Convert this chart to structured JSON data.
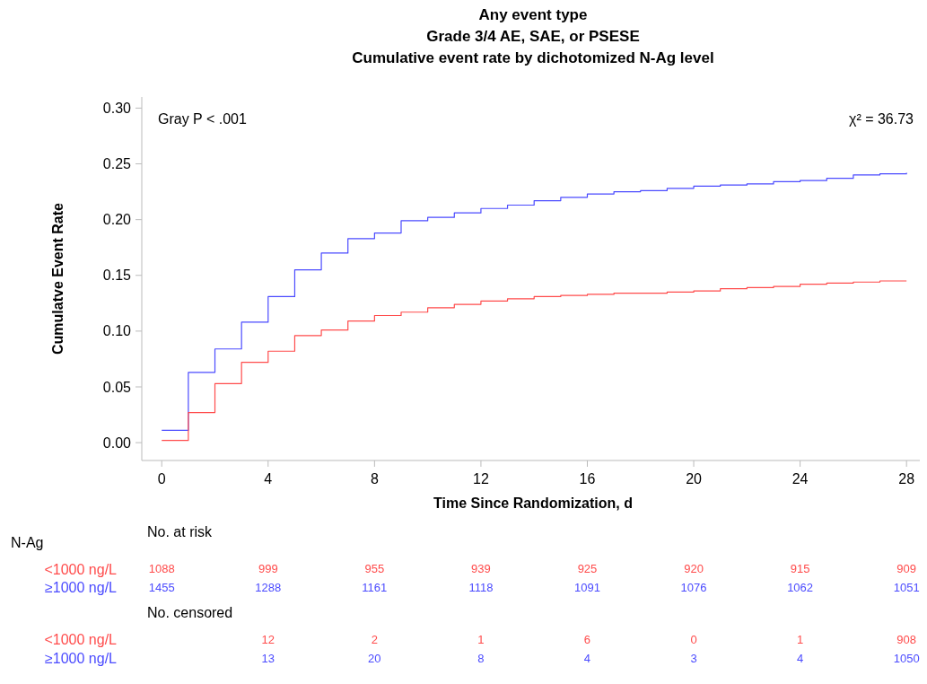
{
  "chart_data": {
    "type": "step",
    "title": "Any event type",
    "subtitle": "Grade 3/4 AE, SAE, or PSESE\nCumulative event rate by dichotomized N-Ag level",
    "xlabel": "Time Since Randomization, d",
    "ylabel": "Cumulatve Event Rate",
    "x": [
      0,
      1,
      2,
      3,
      4,
      5,
      6,
      7,
      8,
      9,
      10,
      11,
      12,
      13,
      14,
      15,
      16,
      17,
      18,
      19,
      20,
      21,
      22,
      23,
      24,
      25,
      26,
      27,
      28
    ],
    "series": [
      {
        "color": "#4b4bff",
        "values": [
          0.011,
          0.063,
          0.084,
          0.108,
          0.131,
          0.155,
          0.17,
          0.183,
          0.188,
          0.199,
          0.202,
          0.206,
          0.21,
          0.213,
          0.217,
          0.22,
          0.223,
          0.225,
          0.226,
          0.228,
          0.23,
          0.231,
          0.232,
          0.234,
          0.235,
          0.237,
          0.24,
          0.241,
          0.242
        ]
      },
      {
        "color": "#ff4b4b",
        "values": [
          0.002,
          0.027,
          0.053,
          0.072,
          0.082,
          0.096,
          0.101,
          0.109,
          0.114,
          0.117,
          0.121,
          0.124,
          0.127,
          0.129,
          0.131,
          0.132,
          0.133,
          0.134,
          0.134,
          0.135,
          0.136,
          0.138,
          0.139,
          0.14,
          0.142,
          0.143,
          0.144,
          0.145,
          0.145
        ]
      }
    ],
    "xlim": [
      -0.75,
      28.5
    ],
    "xticks": [
      0,
      4,
      8,
      12,
      16,
      20,
      24,
      28
    ],
    "ylim": [
      -0.016,
      0.31
    ],
    "yticks": [
      {
        "value": 0,
        "label": "0.00"
      },
      {
        "value": 0.05,
        "label": "0.05"
      },
      {
        "value": 0.1,
        "label": "0.10"
      },
      {
        "value": 0.15,
        "label": "0.15"
      },
      {
        "value": 0.2,
        "label": "0.20"
      },
      {
        "value": 0.25,
        "label": "0.25"
      },
      {
        "value": 0.3,
        "label": "0.30"
      }
    ],
    "grid": false,
    "annotations": [
      "Gray P < .001",
      "χ² = 36.73",
      "N-Ag",
      "No. at risk",
      "<1000 ng/L",
      "≥1000 ng/L",
      "1088",
      "999",
      "955",
      "939",
      "925",
      "920",
      "915",
      "909",
      "1455",
      "1288",
      "1161",
      "1118",
      "1091",
      "1076",
      "1062",
      "1051",
      "No. censored",
      "<1000 ng/L",
      "≥1000 ng/L",
      "12",
      "2",
      "1",
      "6",
      "0",
      "1",
      "908",
      "13",
      "20",
      "8",
      "4",
      "3",
      "4",
      "1050"
    ]
  }
}
